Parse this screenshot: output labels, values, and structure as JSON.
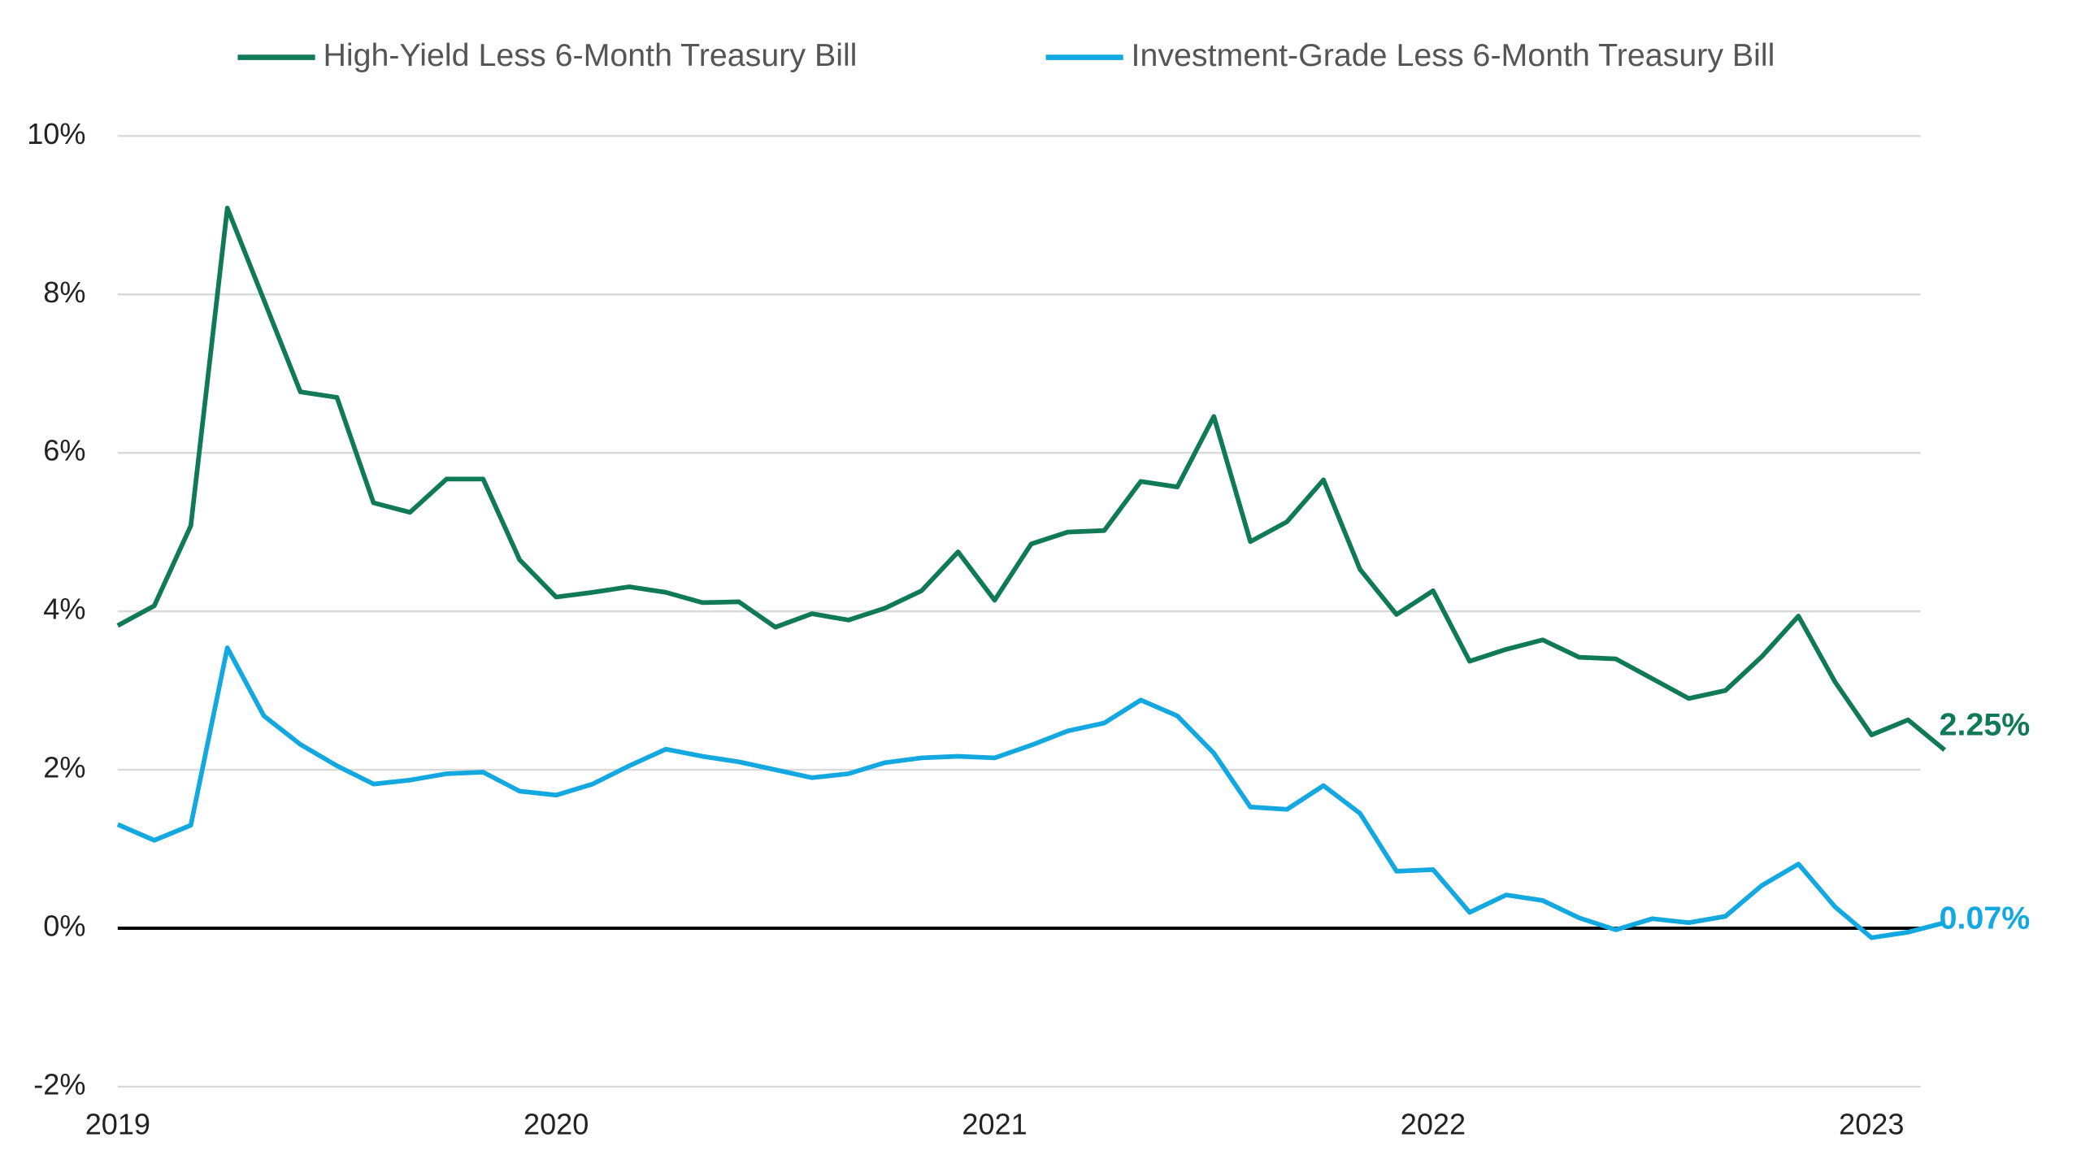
{
  "chart_data": {
    "type": "line",
    "categories": [
      "2019",
      null,
      null,
      null,
      null,
      null,
      null,
      null,
      null,
      null,
      null,
      null,
      "2020",
      null,
      null,
      null,
      null,
      null,
      null,
      null,
      null,
      null,
      null,
      null,
      "2021",
      null,
      null,
      null,
      null,
      null,
      null,
      null,
      null,
      null,
      null,
      null,
      "2022",
      null,
      null,
      null,
      null,
      null,
      null,
      null,
      null,
      null,
      null,
      null,
      "2023",
      null,
      null
    ],
    "series": [
      {
        "name": "High-Yield Less 6-Month Treasury Bill",
        "color": "#0f7a55",
        "values": [
          3.82,
          4.07,
          5.08,
          9.09,
          7.93,
          6.77,
          6.7,
          5.37,
          5.25,
          5.67,
          5.67,
          4.65,
          4.18,
          4.24,
          4.31,
          4.24,
          4.11,
          4.12,
          3.8,
          3.97,
          3.89,
          4.04,
          4.26,
          4.75,
          4.14,
          4.85,
          5.0,
          5.02,
          5.64,
          5.57,
          6.46,
          4.88,
          5.13,
          5.66,
          4.53,
          3.96,
          4.26,
          3.37,
          3.52,
          3.64,
          3.42,
          3.4,
          3.15,
          2.9,
          3.0,
          3.43,
          3.94,
          3.11,
          2.44,
          2.63,
          2.25
        ],
        "value_labels": [
          null,
          null,
          null,
          null,
          null,
          null,
          null,
          null,
          null,
          null,
          null,
          null,
          null,
          null,
          null,
          null,
          null,
          null,
          null,
          null,
          null,
          null,
          null,
          null,
          null,
          null,
          null,
          null,
          null,
          null,
          null,
          null,
          null,
          null,
          null,
          null,
          null,
          null,
          null,
          null,
          null,
          null,
          null,
          null,
          null,
          null,
          null,
          null,
          null,
          null,
          "2.25%"
        ]
      },
      {
        "name": "Investment-Grade Less 6-Month Treasury Bill",
        "color": "#13a8e0",
        "values": [
          1.31,
          1.11,
          1.3,
          3.54,
          2.68,
          2.32,
          2.05,
          1.82,
          1.87,
          1.95,
          1.97,
          1.73,
          1.68,
          1.82,
          2.05,
          2.26,
          2.17,
          2.1,
          2.0,
          1.9,
          1.95,
          2.09,
          2.15,
          2.17,
          2.15,
          2.31,
          2.49,
          2.59,
          2.88,
          2.68,
          2.21,
          1.53,
          1.5,
          1.8,
          1.45,
          0.72,
          0.74,
          0.2,
          0.42,
          0.35,
          0.13,
          -0.02,
          0.12,
          0.07,
          0.15,
          0.54,
          0.81,
          0.27,
          -0.12,
          -0.05,
          0.07
        ],
        "value_labels": [
          null,
          null,
          null,
          null,
          null,
          null,
          null,
          null,
          null,
          null,
          null,
          null,
          null,
          null,
          null,
          null,
          null,
          null,
          null,
          null,
          null,
          null,
          null,
          null,
          null,
          null,
          null,
          null,
          null,
          null,
          null,
          null,
          null,
          null,
          null,
          null,
          null,
          null,
          null,
          null,
          null,
          null,
          null,
          null,
          null,
          null,
          null,
          null,
          null,
          null,
          "0.07%"
        ]
      }
    ],
    "ylim": [
      -2,
      10
    ],
    "yticks": [
      {
        "value": -2,
        "label": "-2%"
      },
      {
        "value": 0,
        "label": "0%"
      },
      {
        "value": 2,
        "label": "2%"
      },
      {
        "value": 4,
        "label": "4%"
      },
      {
        "value": 6,
        "label": "6%"
      },
      {
        "value": 8,
        "label": "8%"
      },
      {
        "value": 10,
        "label": "10%"
      }
    ],
    "grid": true
  }
}
